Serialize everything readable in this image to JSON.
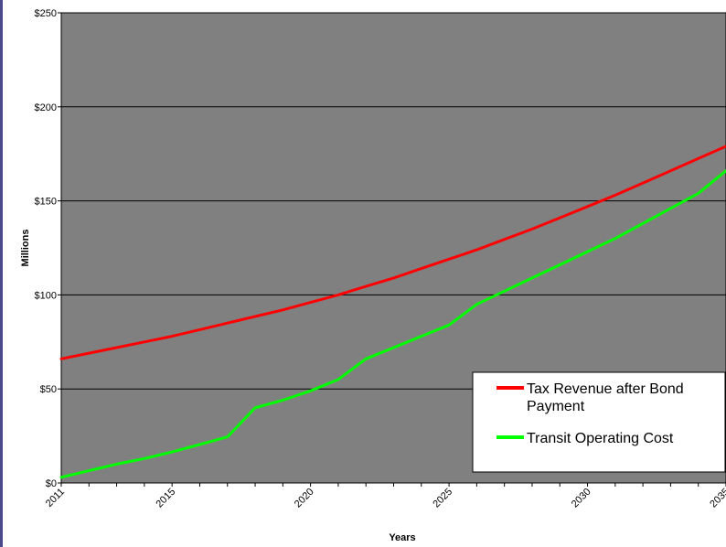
{
  "chart_data": {
    "type": "line",
    "title": "",
    "xlabel": "Years",
    "ylabel": "Millions",
    "xlim": [
      2011,
      2035
    ],
    "ylim": [
      0,
      250
    ],
    "y_ticks": [
      0,
      50,
      100,
      150,
      200,
      250
    ],
    "y_tick_labels": [
      "$0",
      "$50",
      "$100",
      "$150",
      "$200",
      "$250"
    ],
    "x_ticks": [
      2011,
      2015,
      2020,
      2025,
      2030,
      2035
    ],
    "x_tick_labels": [
      "2011",
      "2015",
      "2020",
      "2025",
      "2030",
      "2035"
    ],
    "grid": "horizontal",
    "plot_background": "#808080",
    "legend_position": "bottom-right",
    "series": [
      {
        "name": "Tax Revenue after Bond Payment",
        "color": "#ff0000",
        "x": [
          2011,
          2012,
          2013,
          2014,
          2015,
          2016,
          2017,
          2018,
          2019,
          2020,
          2021,
          2022,
          2023,
          2024,
          2025,
          2026,
          2027,
          2028,
          2029,
          2030,
          2031,
          2032,
          2033,
          2034,
          2035
        ],
        "values": [
          66,
          69,
          72,
          75,
          78,
          81.5,
          85,
          88.5,
          92,
          96,
          100,
          104.5,
          109,
          114,
          119,
          124,
          129.5,
          135,
          141,
          147,
          153,
          159.5,
          166,
          172.5,
          179
        ]
      },
      {
        "name": "Transit Operating Cost",
        "color": "#00ff00",
        "x": [
          2011,
          2012,
          2013,
          2014,
          2015,
          2016,
          2017,
          2018,
          2019,
          2020,
          2021,
          2022,
          2023,
          2024,
          2025,
          2026,
          2027,
          2028,
          2029,
          2030,
          2031,
          2032,
          2033,
          2034,
          2035
        ],
        "values": [
          3,
          6.5,
          10,
          13,
          16.5,
          20.5,
          24.5,
          40,
          44,
          49,
          55,
          66,
          72,
          78,
          84,
          95,
          102,
          109,
          116,
          123,
          130,
          138,
          146,
          154,
          166
        ]
      }
    ]
  }
}
